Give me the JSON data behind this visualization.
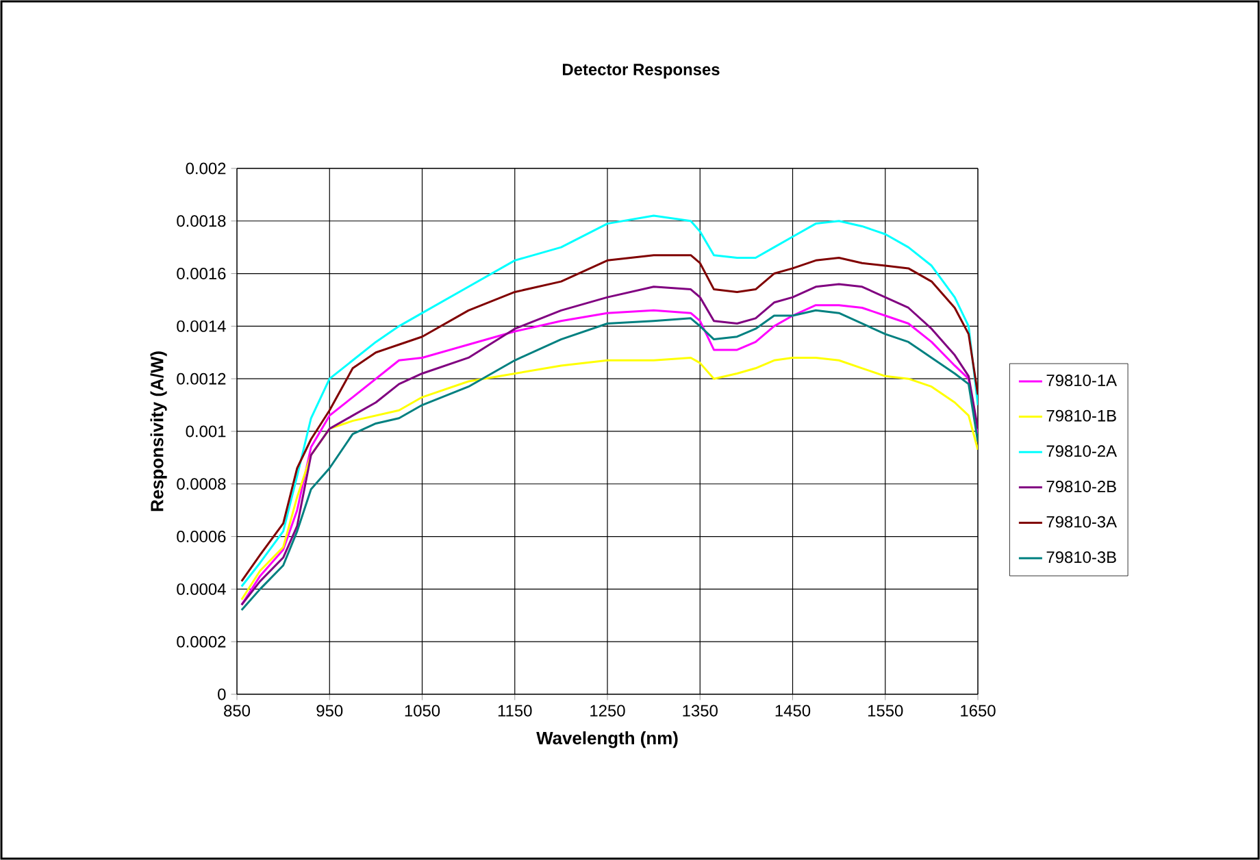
{
  "chart_data": {
    "type": "line",
    "title": "Detector Responses",
    "xlabel": "Wavelength (nm)",
    "ylabel": "Responsivity (A/W)",
    "x": [
      855,
      875,
      900,
      915,
      930,
      950,
      975,
      1000,
      1025,
      1050,
      1100,
      1150,
      1200,
      1250,
      1300,
      1340,
      1350,
      1365,
      1390,
      1410,
      1430,
      1450,
      1475,
      1500,
      1525,
      1550,
      1575,
      1600,
      1625,
      1640,
      1650
    ],
    "series": [
      {
        "name": "79810-1A",
        "color": "#ff00ff",
        "values": [
          0.00034,
          0.00045,
          0.00055,
          0.0007,
          0.00094,
          0.00106,
          0.00113,
          0.0012,
          0.00127,
          0.00128,
          0.00133,
          0.00138,
          0.00142,
          0.00145,
          0.00146,
          0.00145,
          0.00142,
          0.00131,
          0.00131,
          0.00134,
          0.0014,
          0.00144,
          0.00148,
          0.00148,
          0.00147,
          0.00144,
          0.00141,
          0.00134,
          0.00125,
          0.0012,
          0.00099
        ]
      },
      {
        "name": "79810-1B",
        "color": "#ffff00",
        "values": [
          0.00036,
          0.00047,
          0.00056,
          0.00075,
          0.00091,
          0.00101,
          0.00104,
          0.00106,
          0.00108,
          0.00113,
          0.00119,
          0.00122,
          0.00125,
          0.00127,
          0.00127,
          0.00128,
          0.00126,
          0.0012,
          0.00122,
          0.00124,
          0.00127,
          0.00128,
          0.00128,
          0.00127,
          0.00124,
          0.00121,
          0.0012,
          0.00117,
          0.00111,
          0.00106,
          0.00093
        ]
      },
      {
        "name": "79810-2A",
        "color": "#00ffff",
        "values": [
          0.00041,
          0.0005,
          0.00062,
          0.00083,
          0.00105,
          0.0012,
          0.00127,
          0.00134,
          0.0014,
          0.00145,
          0.00155,
          0.00165,
          0.0017,
          0.00179,
          0.00182,
          0.0018,
          0.00176,
          0.00167,
          0.00166,
          0.00166,
          0.0017,
          0.00174,
          0.00179,
          0.0018,
          0.00178,
          0.00175,
          0.0017,
          0.00163,
          0.00151,
          0.0014,
          0.0011
        ]
      },
      {
        "name": "79810-2B",
        "color": "#800080",
        "values": [
          0.00034,
          0.00043,
          0.00052,
          0.00064,
          0.00091,
          0.00101,
          0.00106,
          0.00111,
          0.00118,
          0.00122,
          0.00128,
          0.00139,
          0.00146,
          0.00151,
          0.00155,
          0.00154,
          0.00151,
          0.00142,
          0.00141,
          0.00143,
          0.00149,
          0.00151,
          0.00155,
          0.00156,
          0.00155,
          0.00151,
          0.00147,
          0.00139,
          0.00129,
          0.00121,
          0.00101
        ]
      },
      {
        "name": "79810-3A",
        "color": "#800000",
        "values": [
          0.00043,
          0.00053,
          0.00065,
          0.00086,
          0.00097,
          0.00108,
          0.00124,
          0.0013,
          0.00133,
          0.00136,
          0.00146,
          0.00153,
          0.00157,
          0.00165,
          0.00167,
          0.00167,
          0.00164,
          0.00154,
          0.00153,
          0.00154,
          0.0016,
          0.00162,
          0.00165,
          0.00166,
          0.00164,
          0.00163,
          0.00162,
          0.00157,
          0.00147,
          0.00137,
          0.00114
        ]
      },
      {
        "name": "79810-3B",
        "color": "#008080",
        "values": [
          0.00032,
          0.0004,
          0.00049,
          0.00062,
          0.00078,
          0.00086,
          0.00099,
          0.00103,
          0.00105,
          0.0011,
          0.00117,
          0.00127,
          0.00135,
          0.00141,
          0.00142,
          0.00143,
          0.0014,
          0.00135,
          0.00136,
          0.00139,
          0.00144,
          0.00144,
          0.00146,
          0.00145,
          0.00141,
          0.00137,
          0.00134,
          0.00128,
          0.00122,
          0.00118,
          0.00096
        ]
      }
    ],
    "xlim": [
      850,
      1650
    ],
    "xticks": [
      850,
      950,
      1050,
      1150,
      1250,
      1350,
      1450,
      1550,
      1650
    ],
    "ylim": [
      0,
      0.002
    ],
    "yticks": [
      0,
      0.0002,
      0.0004,
      0.0006,
      0.0008,
      0.001,
      0.0012,
      0.0014,
      0.0016,
      0.0018,
      0.002
    ],
    "grid": true,
    "legend": "right",
    "marker": "none",
    "line_style": "solid"
  }
}
